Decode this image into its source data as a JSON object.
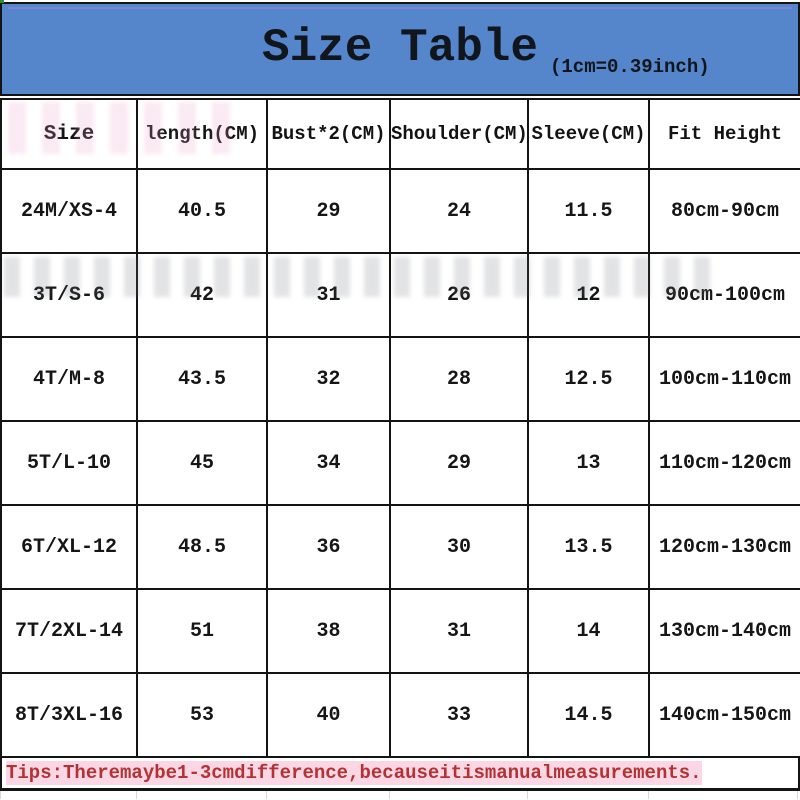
{
  "chart_data": {
    "type": "table",
    "title": "Size Table",
    "subtitle": "(1cm=0.39inch)",
    "columns": [
      "Size",
      "length(CM)",
      "Bust*2(CM)",
      "Shoulder(CM)",
      "Sleeve(CM)",
      "Fit Height"
    ],
    "rows": [
      [
        "24M/XS-4",
        "40.5",
        "29",
        "24",
        "11.5",
        "80cm-90cm"
      ],
      [
        "3T/S-6",
        "42",
        "31",
        "26",
        "12",
        "90cm-100cm"
      ],
      [
        "4T/M-8",
        "43.5",
        "32",
        "28",
        "12.5",
        "100cm-110cm"
      ],
      [
        "5T/L-10",
        "45",
        "34",
        "29",
        "13",
        "110cm-120cm"
      ],
      [
        "6T/XL-12",
        "48.5",
        "36",
        "30",
        "13.5",
        "120cm-130cm"
      ],
      [
        "7T/2XL-14",
        "51",
        "38",
        "31",
        "14",
        "130cm-140cm"
      ],
      [
        "8T/3XL-16",
        "53",
        "40",
        "33",
        "14.5",
        "140cm-150cm"
      ]
    ],
    "note": "Tips:There maybe 1-3cm difference,because it is manual measurements.",
    "layout_hints": {
      "grid": "on",
      "header_position": "top",
      "note_position": "bottom"
    }
  },
  "colors": {
    "banner_blue": "#5586cb",
    "grid_black": "#141414",
    "tip_red": "#b23333",
    "tip_highlight": "#fbd7e6"
  }
}
